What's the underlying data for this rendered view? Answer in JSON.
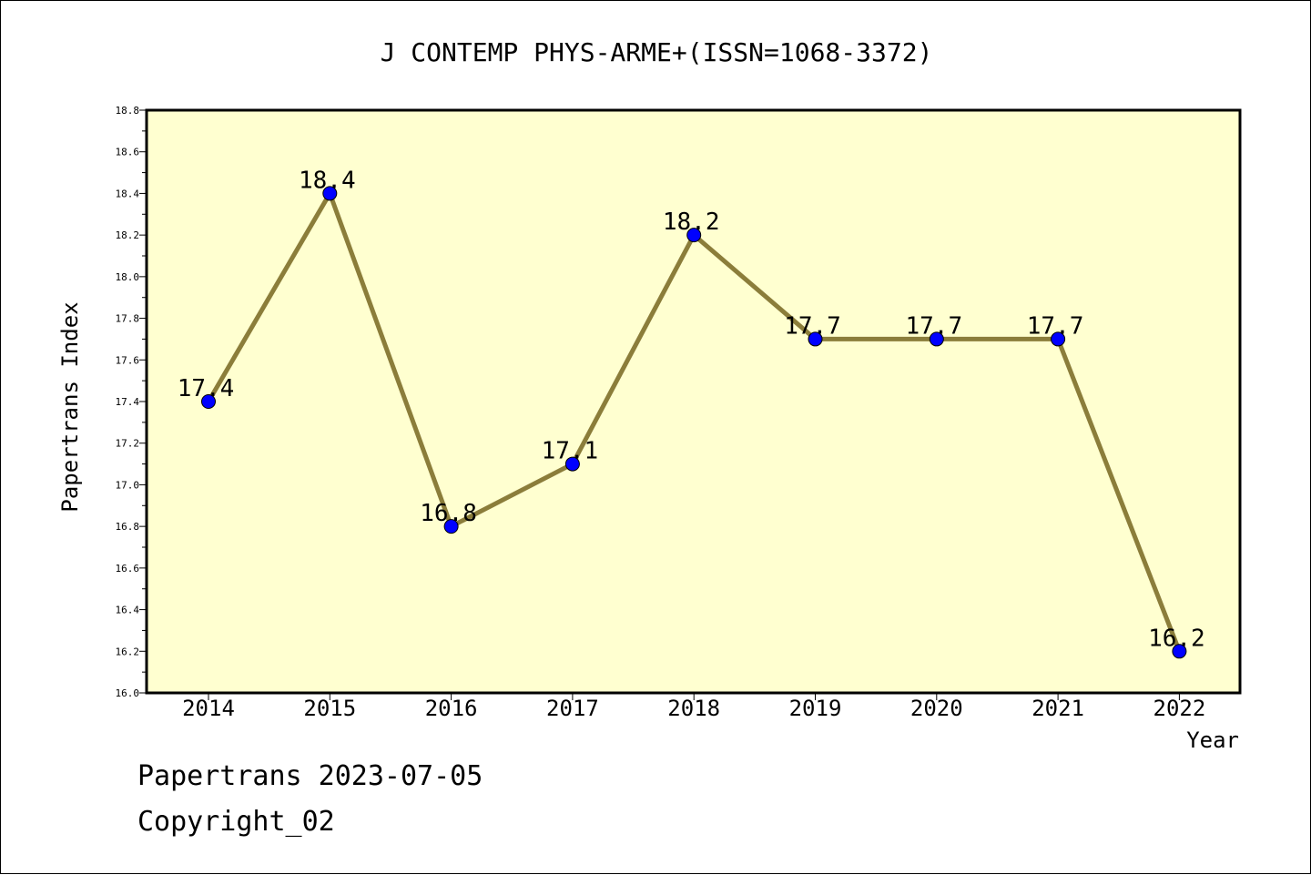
{
  "chart_data": {
    "type": "line",
    "title": "J CONTEMP PHYS-ARME+(ISSN=1068-3372)",
    "xlabel": "Year",
    "ylabel": "Papertrans Index",
    "categories": [
      "2014",
      "2015",
      "2016",
      "2017",
      "2018",
      "2019",
      "2020",
      "2021",
      "2022"
    ],
    "values": [
      17.4,
      18.4,
      16.8,
      17.1,
      18.2,
      17.7,
      17.7,
      17.7,
      16.2
    ],
    "data_labels": [
      "17.4",
      "18.4",
      "16.8",
      "17.1",
      "18.2",
      "17.7",
      "17.7",
      "17.7",
      "16.2"
    ],
    "ylim": [
      16.0,
      18.8
    ],
    "yticks": [
      "16.0",
      "16.2",
      "16.4",
      "16.6",
      "16.8",
      "17.0",
      "17.2",
      "17.4",
      "17.6",
      "17.8",
      "18.0",
      "18.2",
      "18.4",
      "18.6",
      "18.8"
    ],
    "grid": false,
    "colors": {
      "plot_background": "#ffffd0",
      "line": "#8b7d3a",
      "marker": "#0000ff"
    }
  },
  "footer": {
    "date_text": "Papertrans 2023-07-05",
    "copyright_text": "Copyright_02"
  }
}
